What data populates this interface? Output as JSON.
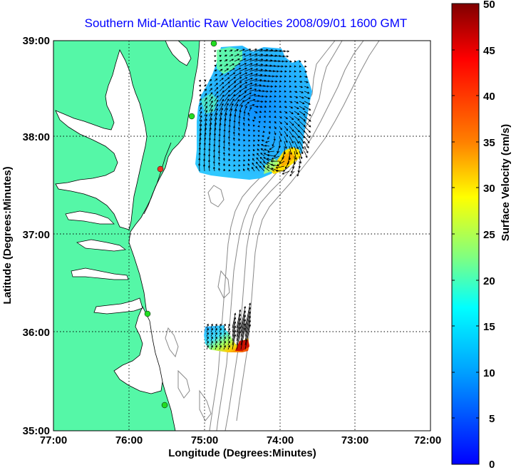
{
  "title": "Southern Mid-Atlantic Raw Velocities 2008/09/01 1600 GMT",
  "axes": {
    "xlabel": "Longitude (Degrees:Minutes)",
    "ylabel": "Latitude (Degrees:Minutes)",
    "xticks": [
      "77:00",
      "76:00",
      "75:00",
      "74:00",
      "73:00",
      "72:00"
    ],
    "yticks": [
      "39:00",
      "38:00",
      "37:00",
      "36:00",
      "35:00"
    ],
    "xlim": [
      -77,
      -72
    ],
    "ylim": [
      35,
      39
    ],
    "grid": "dotted"
  },
  "colorbar": {
    "label": "Surface Velocity (cm/s)",
    "ticks": [
      "50",
      "45",
      "40",
      "35",
      "30",
      "25",
      "20",
      "15",
      "10",
      "5",
      "0"
    ],
    "range": [
      0,
      50
    ],
    "colormap": "jet"
  },
  "colors": {
    "land": "#55f7a7",
    "title": "#0000ff",
    "bathymetry": "#888888",
    "site_green": "#22dd22",
    "site_red": "#ee3322"
  }
}
